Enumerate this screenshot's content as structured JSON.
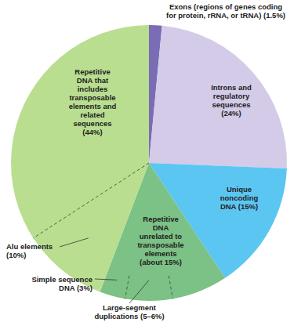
{
  "chart_data": {
    "type": "pie",
    "categories": [
      "Exons (regions of genes coding for protein, rRNA, or tRNA)",
      "Introns and regulatory sequences",
      "Unique noncoding DNA",
      "Repetitive DNA unrelated to transposable elements",
      "Repetitive DNA that includes transposable elements and related sequences"
    ],
    "values": [
      1.5,
      24,
      15,
      15,
      44
    ],
    "value_labels": [
      "(1.5%)",
      "(24%)",
      "(15%)",
      "(about 15%)",
      "(44%)"
    ],
    "colors": [
      "#7b6cb6",
      "#d3cbe8",
      "#5cc6f2",
      "#7cc185",
      "#b9de90"
    ],
    "data_labels": true,
    "parts": [
      [],
      [],
      [],
      [
        {
          "name": "Simple sequence DNA",
          "value": 3,
          "value_label": "(3%)"
        },
        {
          "name": "Large-segment duplications",
          "value": 5.5,
          "value_label": "(5–6%)"
        }
      ],
      [
        {
          "name": "Alu elements",
          "value": 10,
          "value_label": "(10%)"
        }
      ]
    ]
  }
}
